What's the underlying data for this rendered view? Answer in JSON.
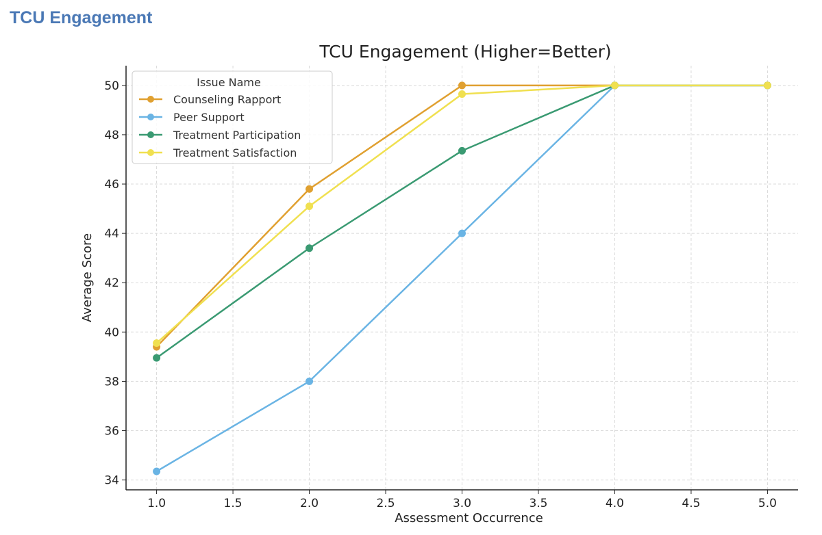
{
  "page": {
    "heading": "TCU Engagement"
  },
  "chart_data": {
    "type": "line",
    "title": "TCU Engagement (Higher=Better)",
    "xlabel": "Assessment Occurrence",
    "ylabel": "Average Score",
    "x": [
      1.0,
      2.0,
      3.0,
      4.0,
      5.0
    ],
    "xlim": [
      0.8,
      5.2
    ],
    "ylim": [
      33.6,
      50.8
    ],
    "xticks": [
      "1.0",
      "1.5",
      "2.0",
      "2.5",
      "3.0",
      "3.5",
      "4.0",
      "4.5",
      "5.0"
    ],
    "yticks": [
      "34",
      "36",
      "38",
      "40",
      "42",
      "44",
      "46",
      "48",
      "50"
    ],
    "grid": true,
    "legend": {
      "title": "Issue Name",
      "location": "top-left"
    },
    "series": [
      {
        "name": "Counseling Rapport",
        "color": "#e0a030",
        "values": [
          39.4,
          45.8,
          50.0,
          50.0,
          50.0
        ]
      },
      {
        "name": "Peer Support",
        "color": "#6ab4e4",
        "values": [
          34.35,
          38.0,
          44.0,
          50.0,
          50.0
        ]
      },
      {
        "name": "Treatment Participation",
        "color": "#3a9a72",
        "values": [
          38.95,
          43.4,
          47.35,
          50.0,
          50.0
        ]
      },
      {
        "name": "Treatment Satisfaction",
        "color": "#f0e050",
        "values": [
          39.55,
          45.1,
          49.65,
          50.0,
          50.0
        ]
      }
    ]
  }
}
